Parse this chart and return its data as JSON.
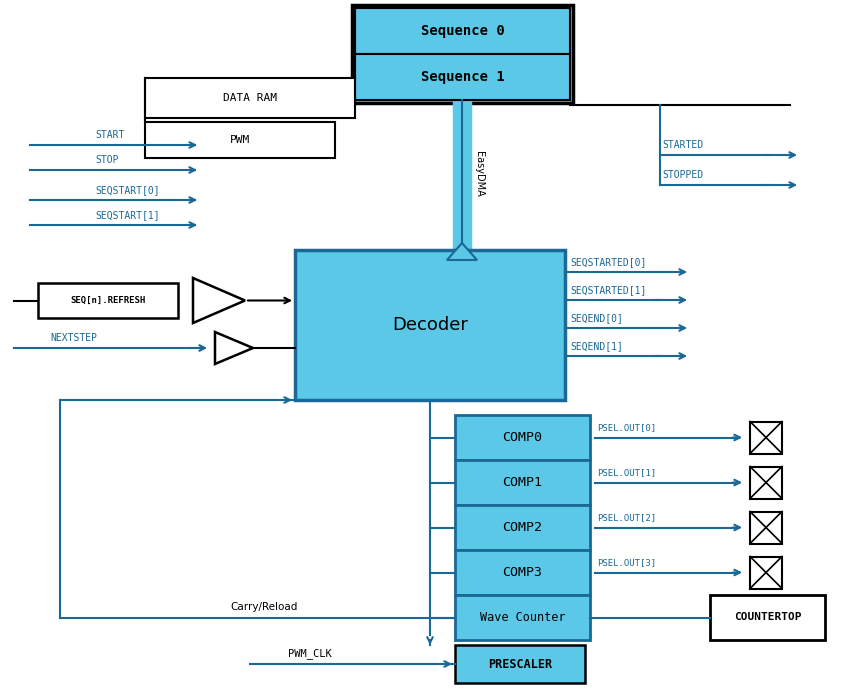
{
  "bg_color": "#ffffff",
  "blue_fill": "#5bc8e8",
  "blue_outline": "#1a6896",
  "black": "#000000",
  "white": "#ffffff",
  "gray_bg": "#ddeeff",
  "fig_w": 8.47,
  "fig_h": 6.91,
  "dpi": 100,
  "seq0_label": "Sequence 0",
  "seq1_label": "Sequence 1",
  "decoder_label": "Decoder",
  "easydma_label": "EasyDMA",
  "data_ram_label": "DATA RAM",
  "pwm_label": "PWM",
  "seq_refresh_label": "SEQ[n].REFRESH",
  "nextstep_label": "NEXTSTEP",
  "carry_reload_label": "Carry/Reload",
  "pwm_clk_label": "PWM_CLK",
  "countertop_label": "COUNTERTOP",
  "prescaler_label": "PRESCALER",
  "wave_counter_label": "Wave Counter",
  "comp_labels": [
    "COMP0",
    "COMP1",
    "COMP2",
    "COMP3"
  ],
  "psel_labels": [
    "PSEL.OUT[0]",
    "PSEL.OUT[1]",
    "PSEL.OUT[2]",
    "PSEL.OUT[3]"
  ],
  "left_tasks": [
    "START",
    "STOP",
    "SEQSTART[0]",
    "SEQSTART[1]"
  ],
  "right_top_events": [
    "STARTED",
    "STOPPED"
  ],
  "right_dec_events": [
    "SEQSTARTED[0]",
    "SEQSTARTED[1]",
    "SEQEND[0]",
    "SEQEND[1]"
  ]
}
